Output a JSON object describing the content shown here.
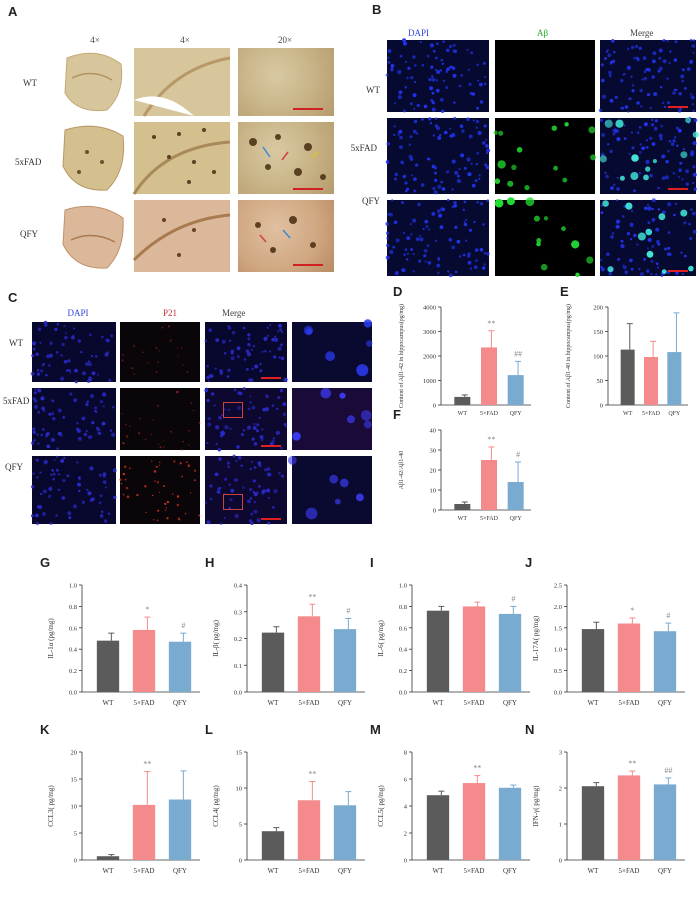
{
  "panels": {
    "A": {
      "label": "A",
      "col_headers": [
        "4×",
        "4×",
        "20×"
      ],
      "rows": [
        "WT",
        "5xFAD",
        "QFY"
      ]
    },
    "B": {
      "label": "B",
      "col_headers": [
        "DAPI",
        "Aβ",
        "Merge"
      ],
      "rows": [
        "WT",
        "5xFAD",
        "QFY"
      ]
    },
    "C": {
      "label": "C",
      "col_headers": [
        "DAPI",
        "P21",
        "Merge"
      ],
      "rows": [
        "WT",
        "5xFAD",
        "QFY"
      ]
    }
  },
  "colors": {
    "WT": "#5b5b5b",
    "5xFAD": "#f48a8c",
    "QFY": "#79aacf"
  },
  "chart_data": [
    {
      "id": "D",
      "type": "bar",
      "label": "D",
      "categories": [
        "WT",
        "5×FAD",
        "QFY"
      ],
      "values": [
        330,
        2350,
        1220
      ],
      "errors": [
        80,
        680,
        560
      ],
      "ylim": [
        0,
        4000
      ],
      "yticks": [
        0,
        1000,
        2000,
        3000,
        4000
      ],
      "ylabel": "Content of Aβ1-42 in hippocampus(pg/mg)",
      "annotations": [
        "",
        "**",
        "##"
      ]
    },
    {
      "id": "E",
      "type": "bar",
      "label": "E",
      "categories": [
        "WT",
        "5×FAD",
        "QFY"
      ],
      "values": [
        113,
        98,
        108
      ],
      "errors": [
        53,
        32,
        80
      ],
      "ylim": [
        0,
        200
      ],
      "yticks": [
        0,
        50,
        100,
        150,
        200
      ],
      "ylabel": "Content of Aβ1-40 in hippocampus(pg/mg)",
      "annotations": [
        "",
        "",
        ""
      ]
    },
    {
      "id": "F",
      "type": "bar",
      "label": "F",
      "categories": [
        "WT",
        "5×FAD",
        "QFY"
      ],
      "values": [
        3,
        25,
        14
      ],
      "errors": [
        1,
        6.5,
        10
      ],
      "ylim": [
        0,
        40
      ],
      "yticks": [
        0,
        10,
        20,
        30,
        40
      ],
      "ylabel": "Aβ1-42/Aβ1-40",
      "annotations": [
        "",
        "**",
        "#"
      ]
    },
    {
      "id": "G",
      "type": "bar",
      "label": "G",
      "categories": [
        "WT",
        "5×FAD",
        "QFY"
      ],
      "values": [
        0.48,
        0.58,
        0.47
      ],
      "errors": [
        0.07,
        0.12,
        0.08
      ],
      "ylim": [
        0,
        1.0
      ],
      "yticks": [
        0.0,
        0.2,
        0.4,
        0.6,
        0.8,
        1.0
      ],
      "ytick_labels": [
        "0.0",
        "0.2",
        "0.4",
        "0.6",
        "0.8",
        "1.0"
      ],
      "ylabel": "IL-1α (pg/mg)",
      "annotations": [
        "",
        "*",
        "#"
      ]
    },
    {
      "id": "H",
      "type": "bar",
      "label": "H",
      "categories": [
        "WT",
        "5×FAD",
        "QFY"
      ],
      "values": [
        0.222,
        0.283,
        0.235
      ],
      "errors": [
        0.022,
        0.045,
        0.04
      ],
      "ylim": [
        0,
        0.4
      ],
      "yticks": [
        0.0,
        0.1,
        0.2,
        0.3,
        0.4
      ],
      "ytick_labels": [
        "0.0",
        "0.1",
        "0.2",
        "0.3",
        "0.4"
      ],
      "ylabel": "IL-β( pg/mg)",
      "annotations": [
        "",
        "**",
        "#"
      ]
    },
    {
      "id": "I",
      "type": "bar",
      "label": "I",
      "categories": [
        "WT",
        "5×FAD",
        "QFY"
      ],
      "values": [
        0.76,
        0.8,
        0.73
      ],
      "errors": [
        0.04,
        0.04,
        0.07
      ],
      "ylim": [
        0,
        1.0
      ],
      "yticks": [
        0.0,
        0.2,
        0.4,
        0.6,
        0.8,
        1.0
      ],
      "ytick_labels": [
        "0.0",
        "0.2",
        "0.4",
        "0.6",
        "0.8",
        "1.0"
      ],
      "ylabel": "IL-6( pg/mg)",
      "annotations": [
        "",
        "",
        "#"
      ]
    },
    {
      "id": "J",
      "type": "bar",
      "label": "J",
      "categories": [
        "WT",
        "5×FAD",
        "QFY"
      ],
      "values": [
        1.47,
        1.6,
        1.42
      ],
      "errors": [
        0.16,
        0.13,
        0.19
      ],
      "ylim": [
        0,
        2.5
      ],
      "yticks": [
        0.0,
        0.5,
        1.0,
        1.5,
        2.0,
        2.5
      ],
      "ytick_labels": [
        "0.0",
        "0.5",
        "1.0",
        "1.5",
        "2.0",
        "2.5"
      ],
      "ylabel": "IL-17A( pg/mg)",
      "annotations": [
        "",
        "*",
        "#"
      ]
    },
    {
      "id": "K",
      "type": "bar",
      "label": "K",
      "categories": [
        "WT",
        "5×FAD",
        "QFY"
      ],
      "values": [
        0.7,
        10.2,
        11.2
      ],
      "errors": [
        0.3,
        6.2,
        5.3
      ],
      "ylim": [
        0,
        20
      ],
      "yticks": [
        0,
        5,
        10,
        15,
        20
      ],
      "ytick_labels": [
        "0",
        "5",
        "10",
        "15",
        "20"
      ],
      "ylabel": "CCL3( pg/mg)",
      "annotations": [
        "",
        "**",
        ""
      ]
    },
    {
      "id": "L",
      "type": "bar",
      "label": "L",
      "categories": [
        "WT",
        "5×FAD",
        "QFY"
      ],
      "values": [
        4.0,
        8.3,
        7.6
      ],
      "errors": [
        0.5,
        2.6,
        1.9
      ],
      "ylim": [
        0,
        15
      ],
      "yticks": [
        0,
        5,
        10,
        15
      ],
      "ytick_labels": [
        "0",
        "5",
        "10",
        "15"
      ],
      "ylabel": "CCL4( pg/mg)",
      "annotations": [
        "",
        "**",
        ""
      ]
    },
    {
      "id": "M",
      "type": "bar",
      "label": "M",
      "categories": [
        "WT",
        "5×FAD",
        "QFY"
      ],
      "values": [
        4.8,
        5.7,
        5.35
      ],
      "errors": [
        0.3,
        0.55,
        0.2
      ],
      "ylim": [
        0,
        8
      ],
      "yticks": [
        0,
        2,
        4,
        6,
        8
      ],
      "ytick_labels": [
        "0",
        "2",
        "4",
        "6",
        "8"
      ],
      "ylabel": "CCL5( pg/mg)",
      "annotations": [
        "",
        "**",
        ""
      ]
    },
    {
      "id": "N",
      "type": "bar",
      "label": "N",
      "categories": [
        "WT",
        "5×FAD",
        "QFY"
      ],
      "values": [
        2.05,
        2.35,
        2.1
      ],
      "errors": [
        0.1,
        0.12,
        0.18
      ],
      "ylim": [
        0,
        3
      ],
      "yticks": [
        0,
        1,
        2,
        3
      ],
      "ytick_labels": [
        "0",
        "1",
        "2",
        "3"
      ],
      "ylabel": "IFN-γ( pg/mg)",
      "annotations": [
        "",
        "**",
        "##"
      ]
    }
  ]
}
